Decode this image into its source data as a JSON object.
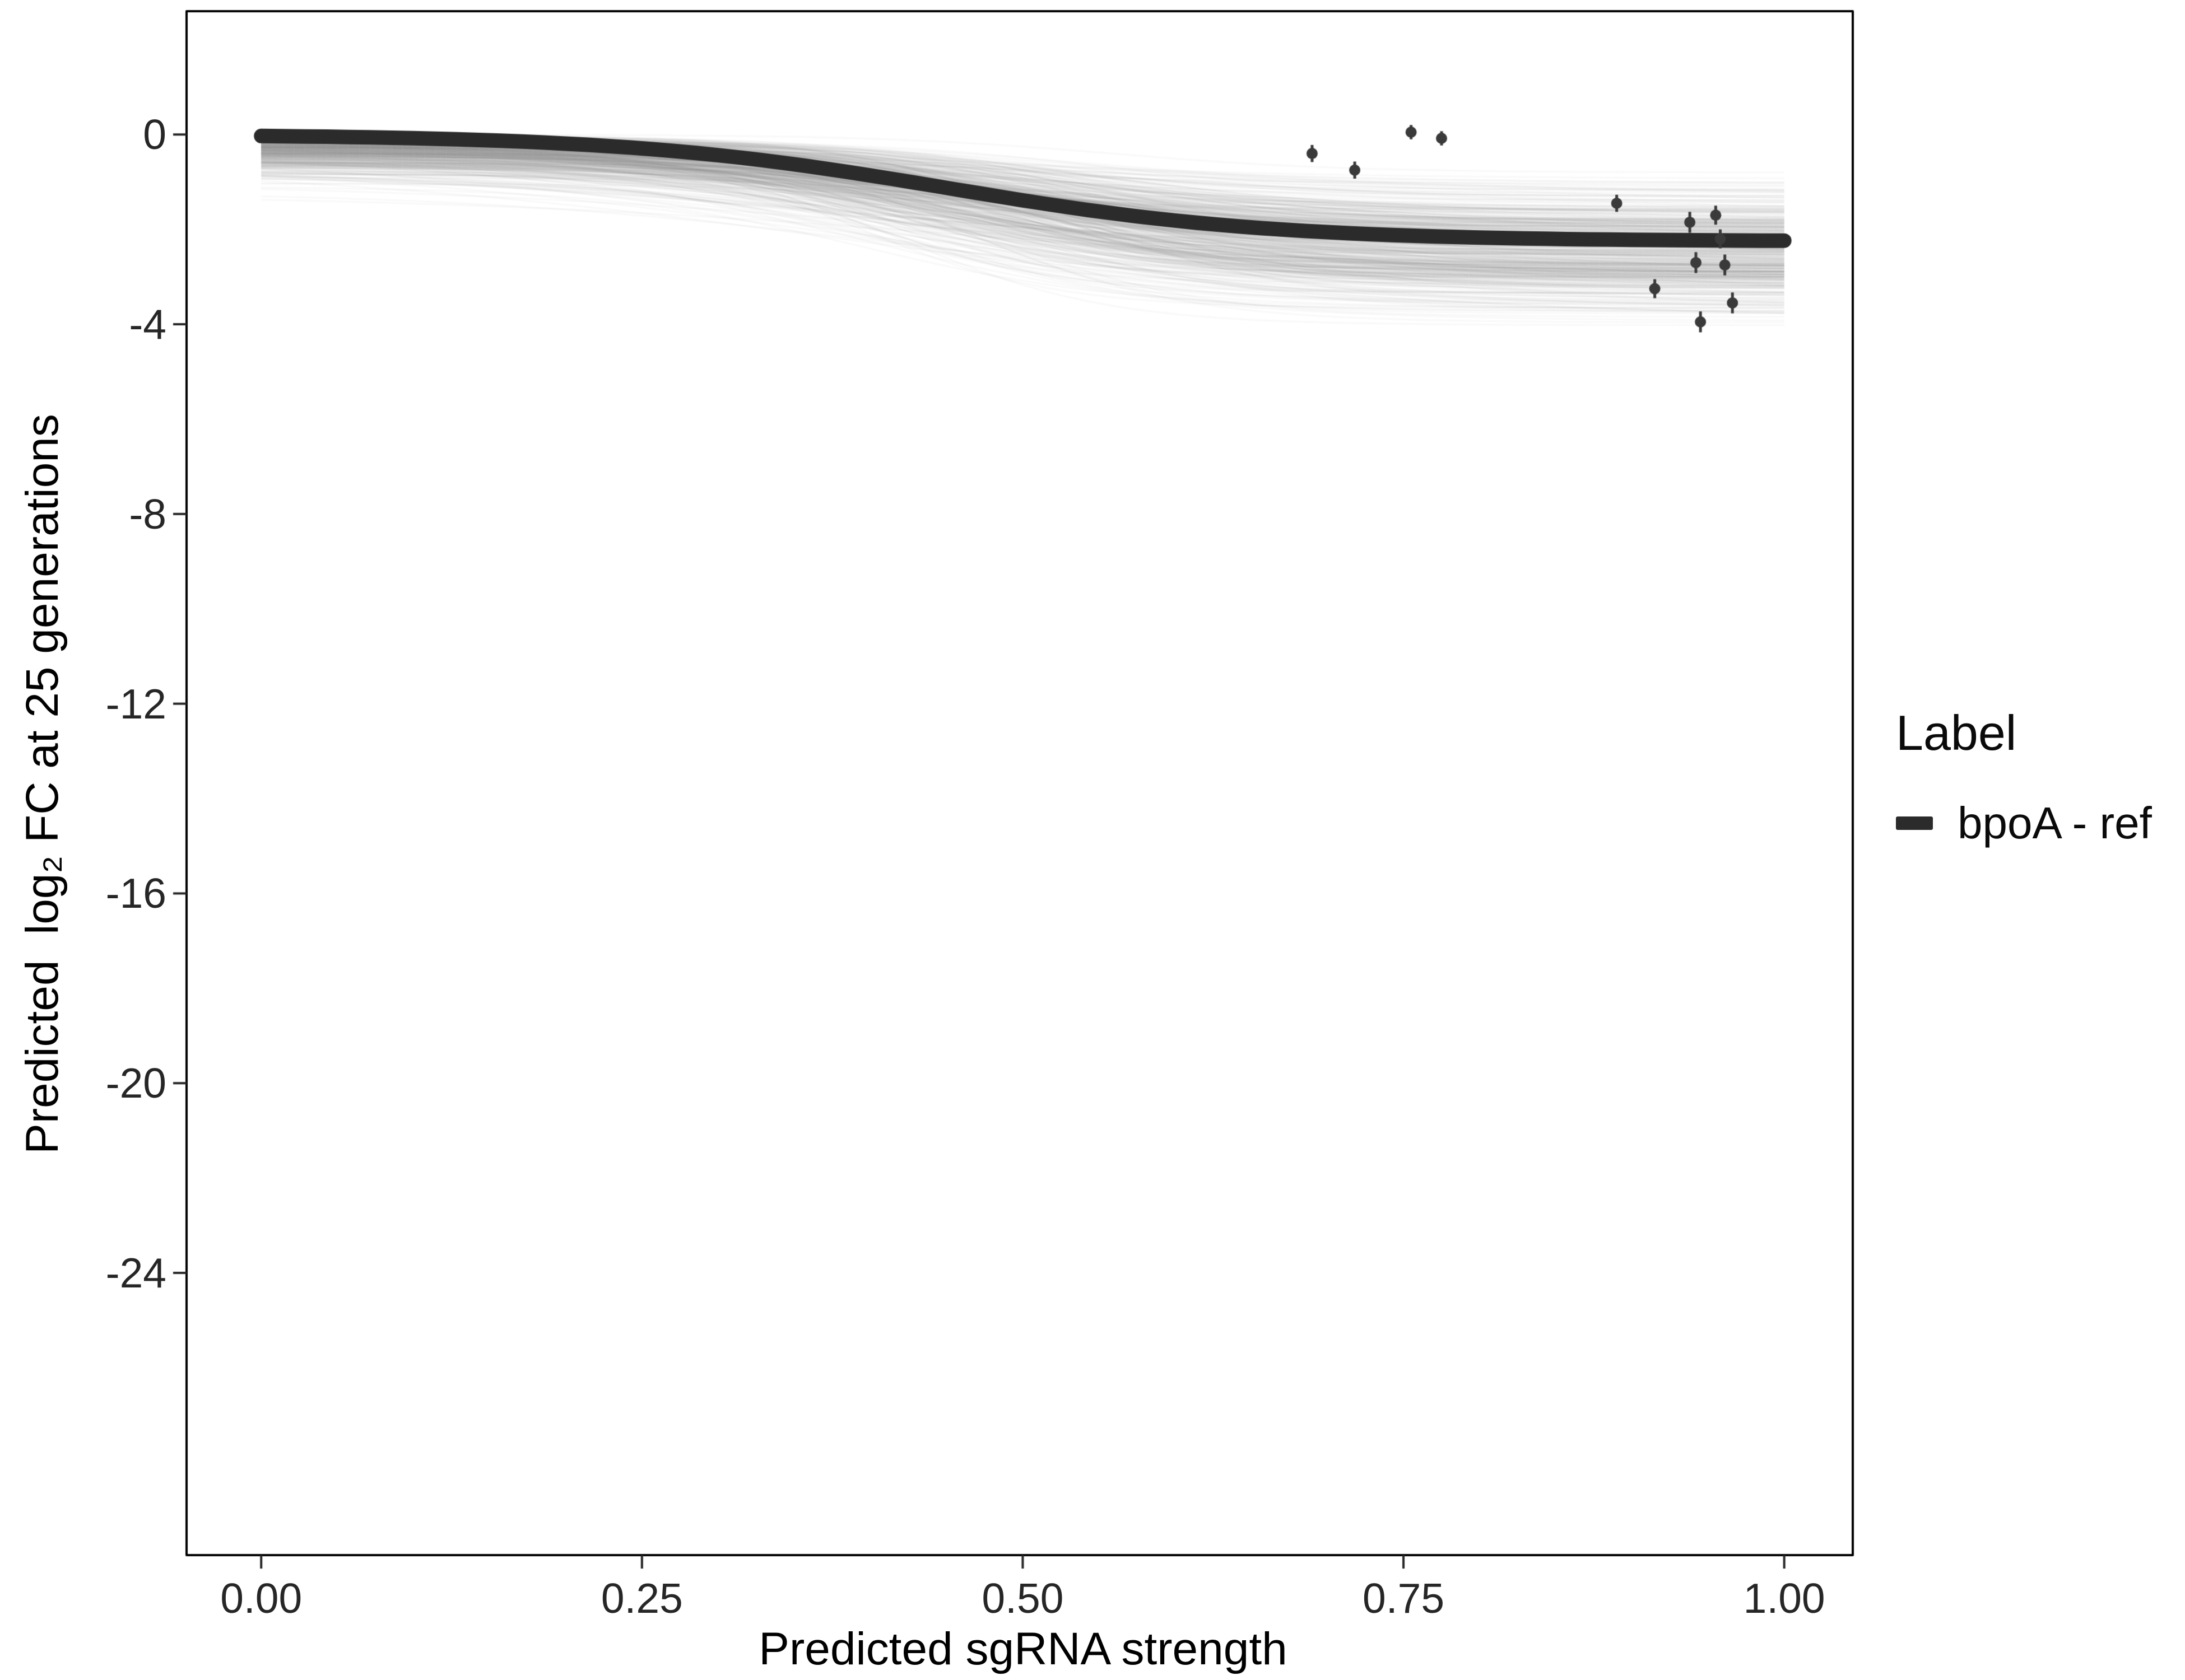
{
  "chart_data": {
    "type": "line",
    "title": "",
    "xlabel": "Predicted sgRNA strength",
    "ylabel": "Predicted  log₂ FC at 25 generations",
    "xlim": [
      -0.049,
      1.045
    ],
    "ylim": [
      -29.95,
      2.6
    ],
    "grid": "off",
    "x_ticks": {
      "values": [
        0,
        0.25,
        0.5,
        0.75,
        1.0
      ],
      "labels": [
        "0.00",
        "0.25",
        "0.50",
        "0.75",
        "1.00"
      ]
    },
    "y_ticks": {
      "values": [
        0,
        -4,
        -8,
        -12,
        -16,
        -20,
        -24
      ],
      "labels": [
        "0",
        "-4",
        "-8",
        "-12",
        "-16",
        "-20",
        "-24"
      ]
    },
    "legend": {
      "title": "Label",
      "position": "right",
      "entries": [
        {
          "label": "bpoA - ref",
          "color": "#2b2b2b",
          "shape": "line"
        }
      ]
    },
    "series": [
      {
        "name": "bpoA - ref",
        "model": "logistic",
        "baseline": 0,
        "amplitude": -2.25,
        "midpoint": 0.45,
        "steepness": 9.5,
        "x_range": [
          0,
          1
        ],
        "color": "#2b2b2b",
        "line_width": 26
      }
    ],
    "ensemble": {
      "description": "posterior draw curves forming gray uncertainty band",
      "count": 480,
      "color_rgb": [
        140,
        140,
        140
      ],
      "alpha": 0.055,
      "line_width": 3,
      "seed": 42,
      "baseline_sd": 0.38,
      "baseline_min": -1.5,
      "amplitude_mean": -2.2,
      "amplitude_sd": 0.6,
      "amplitude_min": -3.6,
      "amplitude_max": -0.8,
      "midpoint_range": [
        0.38,
        0.56
      ],
      "steepness_range": [
        5,
        16
      ]
    },
    "points": {
      "color": "#3a3a3a",
      "radius": 10,
      "error_line_width": 5,
      "data": [
        {
          "x": 0.69,
          "y": -0.4,
          "err": 0.18
        },
        {
          "x": 0.718,
          "y": -0.75,
          "err": 0.18
        },
        {
          "x": 0.755,
          "y": 0.05,
          "err": 0.15
        },
        {
          "x": 0.775,
          "y": -0.08,
          "err": 0.15
        },
        {
          "x": 0.89,
          "y": -1.45,
          "err": 0.18
        },
        {
          "x": 0.915,
          "y": -3.25,
          "err": 0.2
        },
        {
          "x": 0.938,
          "y": -1.85,
          "err": 0.22
        },
        {
          "x": 0.942,
          "y": -2.7,
          "err": 0.22
        },
        {
          "x": 0.945,
          "y": -3.95,
          "err": 0.22
        },
        {
          "x": 0.955,
          "y": -1.7,
          "err": 0.2
        },
        {
          "x": 0.958,
          "y": -2.2,
          "err": 0.2
        },
        {
          "x": 0.961,
          "y": -2.75,
          "err": 0.22
        },
        {
          "x": 0.966,
          "y": -3.55,
          "err": 0.22
        }
      ]
    },
    "style": {
      "panel_border_color": "#000000",
      "panel_border_width": 4,
      "tick_color": "#262626",
      "tick_length": 24,
      "background": "#ffffff"
    }
  }
}
